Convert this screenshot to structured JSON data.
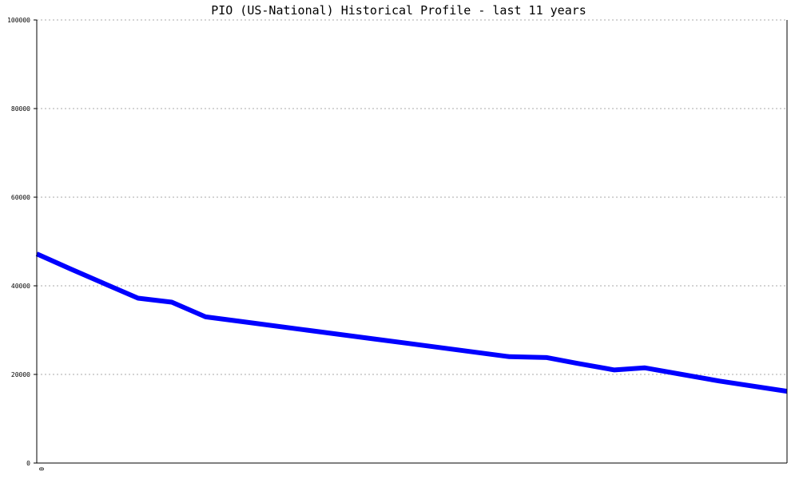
{
  "chart_data": {
    "type": "line",
    "title": "PIO (US-National) Historical Profile - last 11 years",
    "xlabel": "",
    "ylabel": "",
    "x_tick_labels": [
      "0"
    ],
    "ylim": [
      0,
      100000
    ],
    "y_ticks": [
      0,
      20000,
      40000,
      60000,
      80000,
      100000
    ],
    "grid": true,
    "line_color": "#0000ff",
    "series": [
      {
        "x": [
          0,
          0.045,
          0.09,
          0.135,
          0.18,
          0.225,
          0.27,
          0.36,
          0.45,
          0.54,
          0.63,
          0.68,
          0.72,
          0.77,
          0.81,
          0.86,
          0.91,
          1.0
        ],
        "values": [
          47200,
          43800,
          40500,
          37200,
          36300,
          33000,
          32000,
          30000,
          28000,
          26000,
          24000,
          23800,
          22500,
          21000,
          21500,
          20000,
          18500,
          16200
        ]
      }
    ]
  }
}
